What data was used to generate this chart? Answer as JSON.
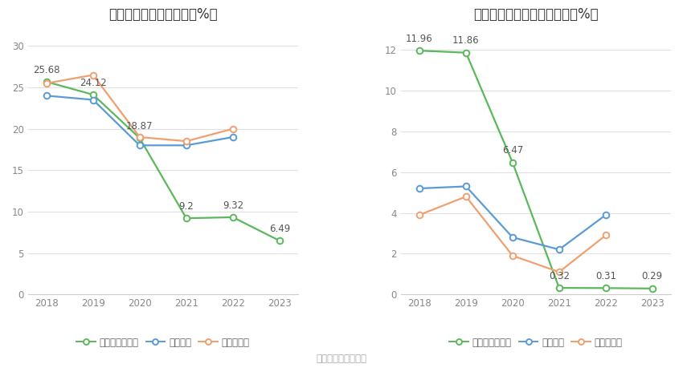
{
  "left_title": "近年来资产负债率情况（%）",
  "right_title": "近年来有息资产负债率情况（%）",
  "source_text": "数据来源：恒生聚源",
  "years": [
    2018,
    2019,
    2020,
    2021,
    2022,
    2023
  ],
  "left": {
    "company": [
      25.68,
      24.12,
      18.87,
      9.2,
      9.32,
      6.49
    ],
    "industry_mean": [
      24.0,
      23.5,
      18.0,
      18.0,
      19.0,
      null
    ],
    "industry_median": [
      25.5,
      26.5,
      19.0,
      18.5,
      20.0,
      null
    ],
    "company_color": "#5cb85c",
    "mean_color": "#5b9bd5",
    "median_color": "#f0a070",
    "ylim": [
      0,
      32
    ],
    "yticks": [
      0,
      5,
      10,
      15,
      20,
      25,
      30
    ],
    "legend": [
      "公司资产负债率",
      "行业均值",
      "行业中位数"
    ]
  },
  "right": {
    "company": [
      11.96,
      11.86,
      6.47,
      0.32,
      0.31,
      0.29
    ],
    "industry_mean": [
      5.2,
      5.3,
      2.8,
      2.2,
      3.9,
      null
    ],
    "industry_median": [
      3.9,
      4.8,
      1.9,
      1.1,
      2.9,
      null
    ],
    "company_color": "#5cb85c",
    "mean_color": "#5b9bd5",
    "median_color": "#f0a070",
    "ylim": [
      0,
      13
    ],
    "yticks": [
      0,
      2,
      4,
      6,
      8,
      10,
      12
    ],
    "legend": [
      "有息资产负债率",
      "行业均值",
      "行业中位数"
    ]
  },
  "background_color": "#ffffff",
  "grid_color": "#e0e0e0",
  "title_fontsize": 12,
  "label_fontsize": 8.5,
  "annot_fontsize": 8.5,
  "legend_fontsize": 8.5,
  "source_fontsize": 8.5
}
